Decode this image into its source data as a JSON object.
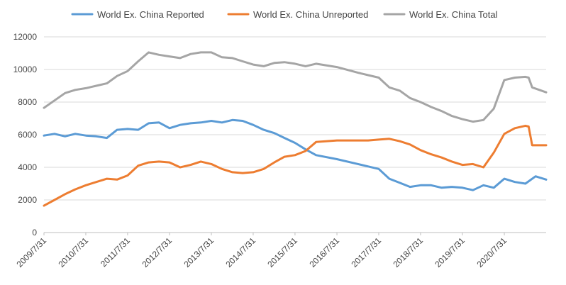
{
  "chart_data": {
    "type": "line",
    "title": "",
    "xlabel": "",
    "ylabel": "",
    "ylim": [
      0,
      12000
    ],
    "yticks": [
      0,
      2000,
      4000,
      6000,
      8000,
      10000,
      12000
    ],
    "grid": true,
    "legend_position": "top",
    "x_range": [
      "2009-07-31",
      "2021-07-31"
    ],
    "x_tick_labels": [
      "2009/7/31",
      "2010/7/31",
      "2011/7/31",
      "2012/7/31",
      "2013/7/31",
      "2014/7/31",
      "2015/7/31",
      "2016/7/31",
      "2017/7/31",
      "2018/7/31",
      "2019/7/31",
      "2020/7/31"
    ],
    "series": [
      {
        "name": "World Ex. China Reported",
        "color": "#5b9bd5",
        "points": [
          [
            "2009-07-31",
            5950
          ],
          [
            "2009-10-31",
            6050
          ],
          [
            "2010-01-31",
            5900
          ],
          [
            "2010-04-30",
            6050
          ],
          [
            "2010-07-31",
            5950
          ],
          [
            "2010-10-31",
            5900
          ],
          [
            "2011-01-31",
            5800
          ],
          [
            "2011-04-30",
            6300
          ],
          [
            "2011-07-31",
            6350
          ],
          [
            "2011-10-31",
            6300
          ],
          [
            "2012-01-31",
            6700
          ],
          [
            "2012-04-30",
            6750
          ],
          [
            "2012-07-31",
            6400
          ],
          [
            "2012-10-31",
            6600
          ],
          [
            "2013-01-31",
            6700
          ],
          [
            "2013-04-30",
            6750
          ],
          [
            "2013-07-31",
            6850
          ],
          [
            "2013-10-31",
            6750
          ],
          [
            "2014-01-31",
            6900
          ],
          [
            "2014-04-30",
            6850
          ],
          [
            "2014-07-31",
            6600
          ],
          [
            "2014-10-31",
            6300
          ],
          [
            "2015-01-31",
            6100
          ],
          [
            "2015-04-30",
            5800
          ],
          [
            "2015-07-31",
            5500
          ],
          [
            "2015-10-31",
            5100
          ],
          [
            "2016-01-31",
            4750
          ],
          [
            "2016-07-31",
            4500
          ],
          [
            "2017-01-31",
            4200
          ],
          [
            "2017-04-30",
            4050
          ],
          [
            "2017-07-31",
            3900
          ],
          [
            "2017-10-31",
            3300
          ],
          [
            "2018-01-31",
            3050
          ],
          [
            "2018-04-30",
            2800
          ],
          [
            "2018-07-31",
            2900
          ],
          [
            "2018-10-31",
            2900
          ],
          [
            "2019-01-31",
            2750
          ],
          [
            "2019-04-30",
            2800
          ],
          [
            "2019-07-31",
            2750
          ],
          [
            "2019-10-31",
            2600
          ],
          [
            "2020-01-31",
            2900
          ],
          [
            "2020-04-30",
            2750
          ],
          [
            "2020-07-31",
            3300
          ],
          [
            "2020-10-31",
            3100
          ],
          [
            "2021-01-31",
            3000
          ],
          [
            "2021-04-30",
            3450
          ],
          [
            "2021-07-31",
            3250
          ]
        ]
      },
      {
        "name": "World Ex. China Unreported",
        "color": "#ed7d31",
        "points": [
          [
            "2009-07-31",
            1650
          ],
          [
            "2009-10-31",
            2000
          ],
          [
            "2010-01-31",
            2350
          ],
          [
            "2010-04-30",
            2650
          ],
          [
            "2010-07-31",
            2900
          ],
          [
            "2010-10-31",
            3100
          ],
          [
            "2011-01-31",
            3300
          ],
          [
            "2011-04-30",
            3250
          ],
          [
            "2011-07-31",
            3500
          ],
          [
            "2011-10-31",
            4100
          ],
          [
            "2012-01-31",
            4300
          ],
          [
            "2012-04-30",
            4350
          ],
          [
            "2012-07-31",
            4300
          ],
          [
            "2012-10-31",
            4000
          ],
          [
            "2013-01-31",
            4150
          ],
          [
            "2013-04-30",
            4350
          ],
          [
            "2013-07-31",
            4200
          ],
          [
            "2013-10-31",
            3900
          ],
          [
            "2014-01-31",
            3700
          ],
          [
            "2014-04-30",
            3650
          ],
          [
            "2014-07-31",
            3700
          ],
          [
            "2014-10-31",
            3900
          ],
          [
            "2015-01-31",
            4300
          ],
          [
            "2015-04-30",
            4650
          ],
          [
            "2015-07-31",
            4750
          ],
          [
            "2015-10-31",
            5000
          ],
          [
            "2016-01-31",
            5550
          ],
          [
            "2016-07-31",
            5650
          ],
          [
            "2017-01-31",
            5650
          ],
          [
            "2017-04-30",
            5650
          ],
          [
            "2017-07-31",
            5700
          ],
          [
            "2017-10-31",
            5750
          ],
          [
            "2018-01-31",
            5600
          ],
          [
            "2018-04-30",
            5400
          ],
          [
            "2018-07-31",
            5050
          ],
          [
            "2018-10-31",
            4800
          ],
          [
            "2019-01-31",
            4600
          ],
          [
            "2019-04-30",
            4350
          ],
          [
            "2019-07-31",
            4150
          ],
          [
            "2019-10-31",
            4200
          ],
          [
            "2020-01-31",
            4000
          ],
          [
            "2020-04-30",
            4900
          ],
          [
            "2020-07-31",
            6050
          ],
          [
            "2020-10-31",
            6400
          ],
          [
            "2021-01-31",
            6550
          ],
          [
            "2021-02-28",
            6500
          ],
          [
            "2021-03-31",
            5350
          ],
          [
            "2021-07-31",
            5350
          ]
        ]
      },
      {
        "name": "World Ex. China Total",
        "color": "#a5a5a5",
        "points": [
          [
            "2009-07-31",
            7650
          ],
          [
            "2009-10-31",
            8100
          ],
          [
            "2010-01-31",
            8550
          ],
          [
            "2010-04-30",
            8750
          ],
          [
            "2010-07-31",
            8850
          ],
          [
            "2010-10-31",
            9000
          ],
          [
            "2011-01-31",
            9150
          ],
          [
            "2011-04-30",
            9600
          ],
          [
            "2011-07-31",
            9900
          ],
          [
            "2011-10-31",
            10500
          ],
          [
            "2012-01-31",
            11050
          ],
          [
            "2012-04-30",
            10900
          ],
          [
            "2012-07-31",
            10800
          ],
          [
            "2012-10-31",
            10700
          ],
          [
            "2013-01-31",
            10950
          ],
          [
            "2013-04-30",
            11050
          ],
          [
            "2013-07-31",
            11050
          ],
          [
            "2013-10-31",
            10750
          ],
          [
            "2014-01-31",
            10700
          ],
          [
            "2014-04-30",
            10500
          ],
          [
            "2014-07-31",
            10300
          ],
          [
            "2014-10-31",
            10200
          ],
          [
            "2015-01-31",
            10400
          ],
          [
            "2015-04-30",
            10450
          ],
          [
            "2015-07-31",
            10350
          ],
          [
            "2015-10-31",
            10200
          ],
          [
            "2016-01-31",
            10350
          ],
          [
            "2016-07-31",
            10150
          ],
          [
            "2017-01-31",
            9800
          ],
          [
            "2017-04-30",
            9650
          ],
          [
            "2017-07-31",
            9500
          ],
          [
            "2017-10-31",
            8900
          ],
          [
            "2018-01-31",
            8700
          ],
          [
            "2018-04-30",
            8250
          ],
          [
            "2018-07-31",
            8000
          ],
          [
            "2018-10-31",
            7700
          ],
          [
            "2019-01-31",
            7450
          ],
          [
            "2019-04-30",
            7150
          ],
          [
            "2019-07-31",
            6950
          ],
          [
            "2019-10-31",
            6800
          ],
          [
            "2020-01-31",
            6900
          ],
          [
            "2020-04-30",
            7600
          ],
          [
            "2020-07-31",
            9350
          ],
          [
            "2020-10-31",
            9500
          ],
          [
            "2021-01-31",
            9550
          ],
          [
            "2021-02-28",
            9500
          ],
          [
            "2021-03-31",
            8900
          ],
          [
            "2021-07-31",
            8600
          ]
        ]
      }
    ]
  }
}
